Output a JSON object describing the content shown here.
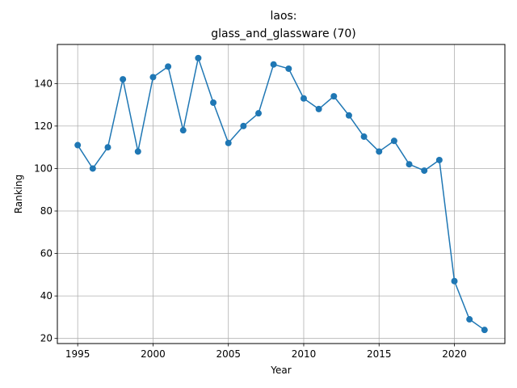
{
  "chart_data": {
    "type": "line",
    "title_line1": "laos:",
    "title_line2": "glass_and_glassware (70)",
    "xlabel": "Year",
    "ylabel": "Ranking",
    "xlim": [
      1993.65,
      2023.35
    ],
    "ylim": [
      17.6,
      158.4
    ],
    "xticks": [
      1995,
      2000,
      2005,
      2010,
      2015,
      2020
    ],
    "yticks": [
      20,
      40,
      60,
      80,
      100,
      120,
      140
    ],
    "grid": true,
    "line_color": "#1f77b4",
    "series": [
      {
        "x": [
          1995,
          1996,
          1997,
          1998,
          1999,
          2000,
          2001,
          2002,
          2003,
          2004,
          2005,
          2006,
          2007,
          2008,
          2009,
          2010,
          2011,
          2012,
          2013,
          2014,
          2015,
          2016,
          2017,
          2018,
          2019,
          2020,
          2021,
          2022
        ],
        "y": [
          111,
          100,
          110,
          142,
          108,
          143,
          148,
          118,
          152,
          131,
          112,
          120,
          126,
          149,
          147,
          133,
          128,
          134,
          125,
          115,
          108,
          113,
          102,
          99,
          104,
          47,
          29,
          24
        ]
      }
    ]
  }
}
